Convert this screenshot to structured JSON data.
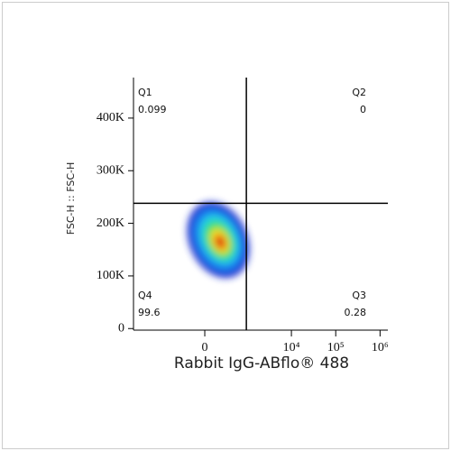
{
  "chart_data": {
    "type": "density",
    "x_label": "Rabbit IgG-ABflo® 488",
    "y_label": "FSC-H :: FSC-H",
    "xscale": "asinh",
    "xlim": [
      -4500,
      1500000
    ],
    "xticks": [
      0,
      {
        "value": 10000,
        "label": "10⁴"
      },
      {
        "value": 100000,
        "label": "10⁵"
      },
      {
        "value": 1000000,
        "label": "10⁶"
      }
    ],
    "ylim": [
      -3000,
      477000
    ],
    "yticks": [
      0,
      {
        "value": 100000,
        "label": "100K"
      },
      {
        "value": 200000,
        "label": "200K"
      },
      {
        "value": 300000,
        "label": "300K"
      },
      {
        "value": 400000,
        "label": "400K"
      }
    ],
    "gate": {
      "x": 950,
      "y": 238000
    },
    "quadrants": [
      {
        "name": "Q1",
        "value": 0.099
      },
      {
        "name": "Q2",
        "value": 0
      },
      {
        "name": "Q3",
        "value": 0.28
      },
      {
        "name": "Q4",
        "value": 99.6
      }
    ]
  }
}
